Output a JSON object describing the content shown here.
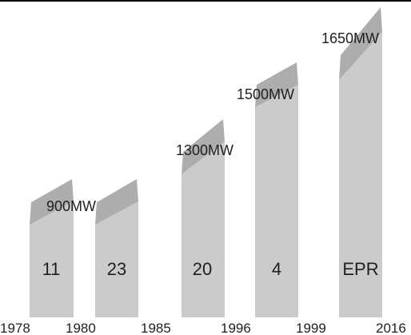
{
  "chart_data": {
    "type": "bar",
    "title": "",
    "xlabel": "",
    "ylabel": "",
    "year_ticks": [
      "1978",
      "1980",
      "1985",
      "1996",
      "1999",
      "2016"
    ],
    "series": [
      {
        "capacity": "900MW",
        "count": "11",
        "from": 1978,
        "to": 1980
      },
      {
        "capacity": "900MW",
        "count": "23",
        "from": 1980,
        "to": 1985
      },
      {
        "capacity": "1300MW",
        "count": "20",
        "from": 1985,
        "to": 1996
      },
      {
        "capacity": "1500MW",
        "count": "4",
        "from": 1996,
        "to": 1999
      },
      {
        "capacity": "1650MW",
        "count": "EPR",
        "from": 1999,
        "to": 2016
      }
    ],
    "colors": {
      "bar_face": "#cbcbcb",
      "bar_top": "#adadad",
      "axis": "#000000",
      "text": "#1f1f1f"
    },
    "grid": false,
    "legend": "none"
  }
}
